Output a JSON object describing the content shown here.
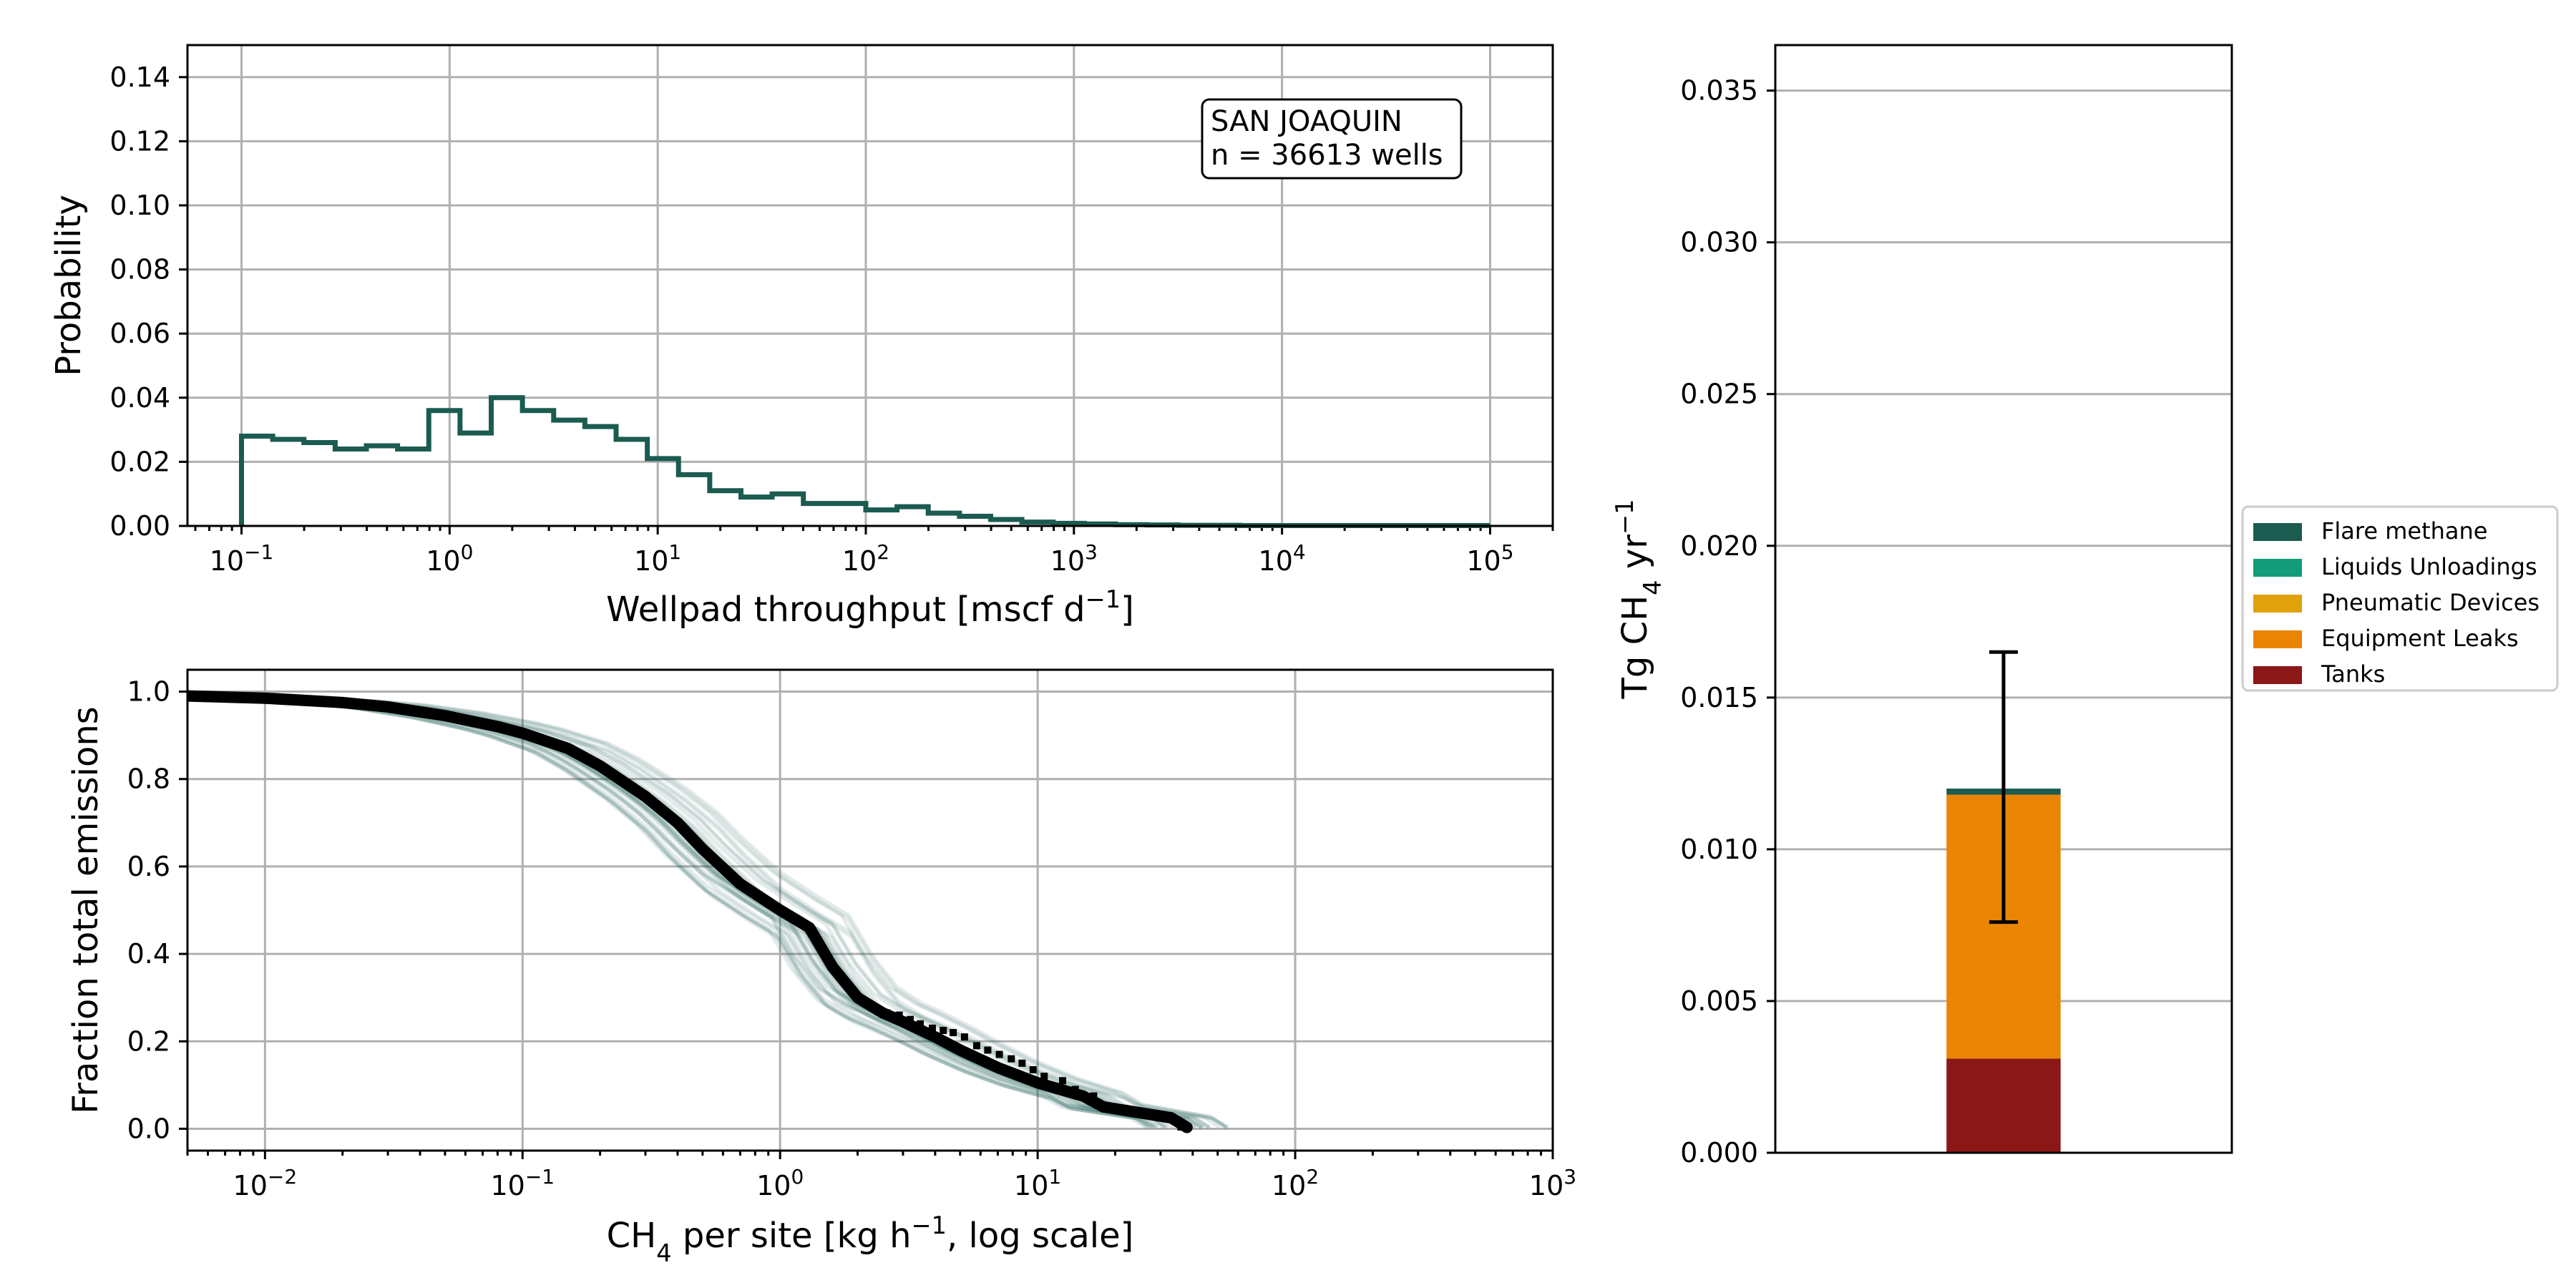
{
  "colors": {
    "hist_line": "#1b5b50",
    "mc_trace": "#1b5b50",
    "median_trace": "#000000",
    "flare_methane": "#1b5b50",
    "liquids_unloadings": "#129c79",
    "pneumatic_devices": "#e0a10b",
    "equipment_leaks": "#ea8503",
    "tanks": "#8b1717",
    "grid": "#b0b0b0"
  },
  "chart_data": [
    {
      "type": "line",
      "subtype": "step-histogram",
      "xlabel": "Wellpad throughput [mscf d$^{-1}$]",
      "ylabel": "Probability",
      "xscale": "log",
      "xlim": [
        0.055,
        200000
      ],
      "ylim": [
        0,
        0.15
      ],
      "grid": true,
      "x_ticks": [
        {
          "value": 0.1,
          "base": "10",
          "exp": "−1"
        },
        {
          "value": 1,
          "base": "10",
          "exp": "0"
        },
        {
          "value": 10,
          "base": "10",
          "exp": "1"
        },
        {
          "value": 100,
          "base": "10",
          "exp": "2"
        },
        {
          "value": 1000,
          "base": "10",
          "exp": "3"
        },
        {
          "value": 10000,
          "base": "10",
          "exp": "4"
        },
        {
          "value": 100000,
          "base": "10",
          "exp": "5"
        }
      ],
      "y_ticks": [
        "0.00",
        "0.02",
        "0.04",
        "0.06",
        "0.08",
        "0.10",
        "0.12",
        "0.14"
      ],
      "annotation": {
        "line1": "SAN JOAQUIN",
        "line2": "n = 36613 wells"
      },
      "bin_edges_log10": [
        -1,
        -0.85,
        -0.7,
        -0.55,
        -0.4,
        -0.25,
        -0.1,
        0.05,
        0.2,
        0.35,
        0.5,
        0.65,
        0.8,
        0.95,
        1.1,
        1.25,
        1.4,
        1.55,
        1.7,
        1.85,
        2.0,
        2.15,
        2.3,
        2.45,
        2.6,
        2.75,
        2.9,
        3.05,
        3.2,
        3.35,
        3.5,
        3.65,
        3.8,
        3.95,
        4.1,
        4.25,
        4.4,
        4.55,
        4.7,
        4.85,
        5.0
      ],
      "values": [
        0.028,
        0.027,
        0.026,
        0.024,
        0.025,
        0.024,
        0.036,
        0.029,
        0.04,
        0.036,
        0.033,
        0.031,
        0.027,
        0.021,
        0.016,
        0.011,
        0.009,
        0.01,
        0.007,
        0.007,
        0.005,
        0.006,
        0.004,
        0.003,
        0.002,
        0.0012,
        0.0008,
        0.0006,
        0.0004,
        0.0003,
        0.0002,
        0.0002,
        0.0001,
        0.0001,
        0.0001,
        0.0001,
        0.0001,
        0.0001,
        0.0001,
        0.0001
      ]
    },
    {
      "type": "line",
      "xlabel": "CH$_4$ per site [kg h$^{-1}$, log scale]",
      "ylabel": "Fraction total emissions",
      "xscale": "log",
      "xlim": [
        0.005,
        1000
      ],
      "ylim": [
        -0.05,
        1.05
      ],
      "grid": true,
      "x_ticks": [
        {
          "value": 0.01,
          "base": "10",
          "exp": "−2"
        },
        {
          "value": 0.1,
          "base": "10",
          "exp": "−1"
        },
        {
          "value": 1,
          "base": "10",
          "exp": "0"
        },
        {
          "value": 10,
          "base": "10",
          "exp": "1"
        },
        {
          "value": 100,
          "base": "10",
          "exp": "2"
        },
        {
          "value": 1000,
          "base": "10",
          "exp": "3"
        }
      ],
      "y_ticks": [
        "0.0",
        "0.2",
        "0.4",
        "0.6",
        "0.8",
        "1.0"
      ],
      "series": [
        {
          "x": [
            0.005,
            0.01,
            0.02,
            0.03,
            0.05,
            0.08,
            0.1,
            0.15,
            0.2,
            0.3,
            0.4,
            0.5,
            0.7,
            1.0,
            1.3,
            1.6,
            2.0,
            2.5,
            3.0,
            4.0,
            5.0,
            7.0,
            10.0,
            15.0,
            18.0,
            33.0,
            38.0
          ],
          "values": [
            0.99,
            0.985,
            0.975,
            0.965,
            0.945,
            0.92,
            0.905,
            0.87,
            0.83,
            0.76,
            0.7,
            0.64,
            0.56,
            0.5,
            0.46,
            0.37,
            0.3,
            0.265,
            0.245,
            0.21,
            0.18,
            0.14,
            0.105,
            0.075,
            0.05,
            0.025,
            0.003
          ]
        }
      ],
      "markers": {
        "x": [
          2.1,
          2.3,
          2.6,
          2.9,
          3.2,
          3.5,
          3.9,
          4.3,
          4.7,
          5.2,
          5.8,
          6.4,
          7.1,
          7.9,
          8.7,
          9.6,
          10.6,
          12.5,
          14.0,
          16.5,
          17.5,
          31.0,
          36.0
        ],
        "values": [
          0.29,
          0.28,
          0.265,
          0.26,
          0.25,
          0.24,
          0.23,
          0.225,
          0.22,
          0.21,
          0.19,
          0.18,
          0.17,
          0.16,
          0.15,
          0.135,
          0.12,
          0.11,
          0.09,
          0.075,
          0.055,
          0.03,
          0.004
        ]
      }
    },
    {
      "type": "bar",
      "stacked": true,
      "ylabel": "Tg CH$_4$ yr$^{-1}$",
      "ylim": [
        0,
        0.0365
      ],
      "grid": true,
      "y_ticks": [
        "0.000",
        "0.005",
        "0.010",
        "0.015",
        "0.020",
        "0.025",
        "0.030",
        "0.035"
      ],
      "categories": [
        ""
      ],
      "series": [
        {
          "name": "Tanks",
          "values": [
            0.0031
          ],
          "color_key": "tanks"
        },
        {
          "name": "Equipment Leaks",
          "values": [
            0.0087
          ],
          "color_key": "equipment_leaks"
        },
        {
          "name": "Pneumatic Devices",
          "values": [
            0.0
          ],
          "color_key": "pneumatic_devices"
        },
        {
          "name": "Liquids Unloadings",
          "values": [
            0.0
          ],
          "color_key": "liquids_unloadings"
        },
        {
          "name": "Flare methane",
          "values": [
            0.0002
          ],
          "color_key": "flare_methane"
        }
      ],
      "error_bar": {
        "center": 0.012,
        "low": 0.0076,
        "high": 0.0165
      },
      "legend": {
        "placement": "right-outside",
        "entries": [
          "Flare methane",
          "Liquids Unloadings",
          "Pneumatic Devices",
          "Equipment Leaks",
          "Tanks"
        ]
      }
    }
  ]
}
